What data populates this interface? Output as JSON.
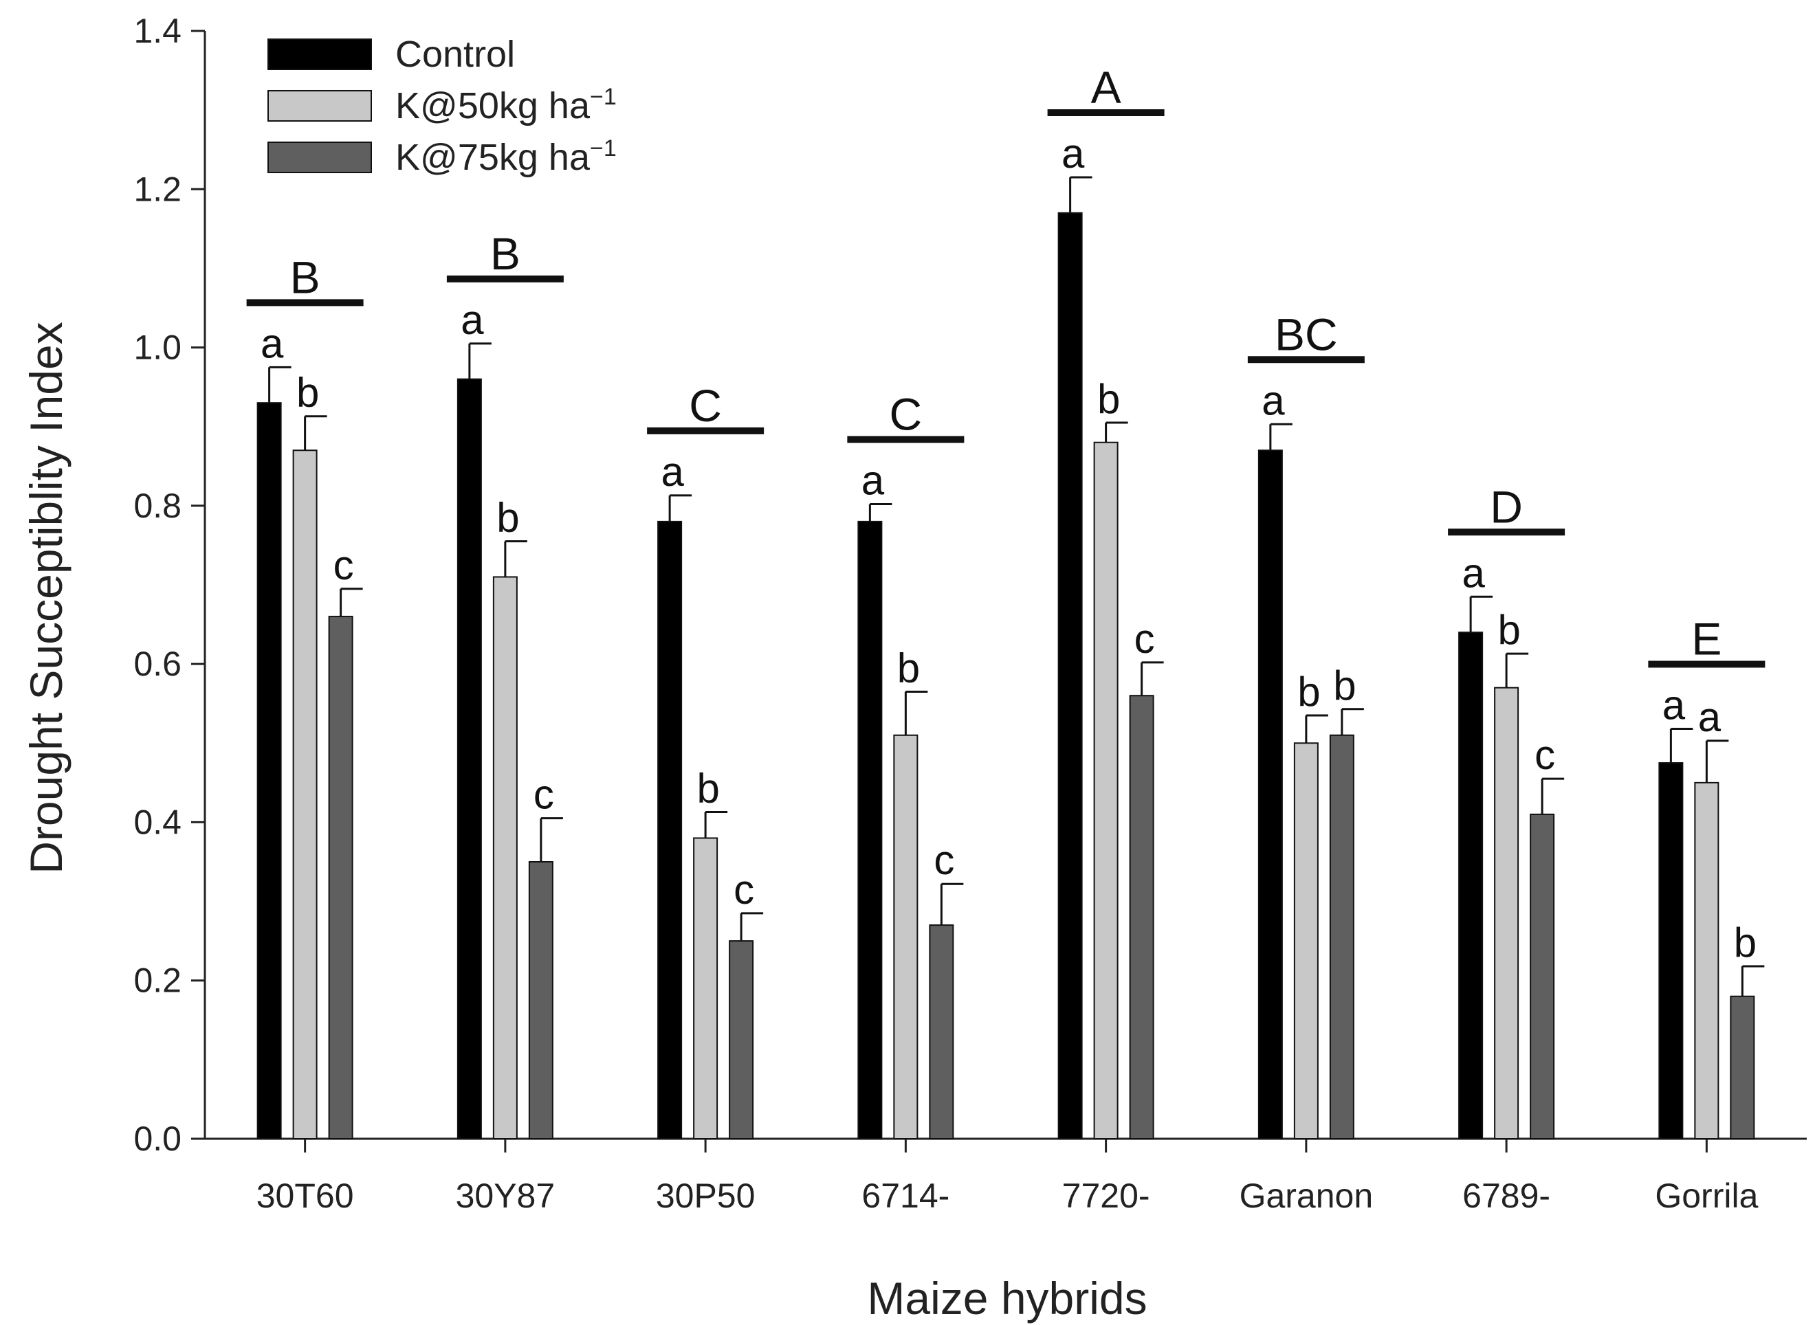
{
  "chart_data": {
    "type": "bar",
    "title": "",
    "xlabel": "Maize hybrids",
    "ylabel": "Drought Succeptiblity Index",
    "ylim": [
      0,
      1.4
    ],
    "yticks": [
      "0.0",
      "0.2",
      "0.4",
      "0.6",
      "0.8",
      "1.0",
      "1.2",
      "1.4"
    ],
    "grid": false,
    "legend_position": "top-left",
    "categories": [
      "30T60",
      "30Y87",
      "30P50",
      "6714-",
      "7720-",
      "Garanon",
      "6789-",
      "Gorrila"
    ],
    "series": [
      {
        "name": "Control",
        "legend_text": "Control",
        "legend_sup": "",
        "color": "#000000",
        "values": [
          0.93,
          0.96,
          0.78,
          0.78,
          1.17,
          0.87,
          0.64,
          0.475
        ],
        "errors": [
          0.045,
          0.045,
          0.033,
          0.022,
          0.045,
          0.033,
          0.045,
          0.043
        ],
        "letters": [
          "a",
          "a",
          "a",
          "a",
          "a",
          "a",
          "a",
          "a"
        ]
      },
      {
        "name": "K@50kg ha-1",
        "legend_text": "K@50kg  ha",
        "legend_sup": "−1",
        "color": "#c8c8c8",
        "values": [
          0.87,
          0.71,
          0.38,
          0.51,
          0.88,
          0.5,
          0.57,
          0.45
        ],
        "errors": [
          0.043,
          0.045,
          0.033,
          0.055,
          0.025,
          0.035,
          0.043,
          0.053
        ],
        "letters": [
          "b",
          "b",
          "b",
          "b",
          "b",
          "b",
          "b",
          "a"
        ]
      },
      {
        "name": "K@75kg ha-1",
        "legend_text": "K@75kg  ha",
        "legend_sup": "−1",
        "color": "#5f5f5f",
        "values": [
          0.66,
          0.35,
          0.25,
          0.27,
          0.56,
          0.51,
          0.41,
          0.18
        ],
        "errors": [
          0.035,
          0.055,
          0.035,
          0.052,
          0.042,
          0.033,
          0.045,
          0.038
        ],
        "letters": [
          "c",
          "c",
          "c",
          "c",
          "c",
          "b",
          "c",
          "b"
        ]
      }
    ],
    "group_letters": [
      "B",
      "B",
      "C",
      "C",
      "A",
      "BC",
      "D",
      "E"
    ]
  }
}
